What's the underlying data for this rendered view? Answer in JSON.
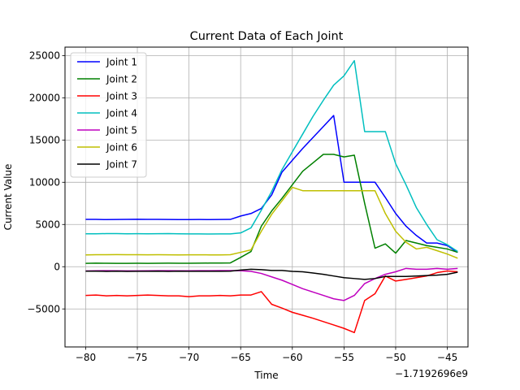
{
  "chart_data": {
    "type": "line",
    "title": "Current Data of Each Joint",
    "xlabel": "Time",
    "ylabel": "Current Value",
    "x_offset_label": "−1.7192696e9",
    "xlim": [
      -82,
      -43
    ],
    "ylim": [
      -9500,
      26000
    ],
    "xticks": [
      -80,
      -75,
      -70,
      -65,
      -60,
      -55,
      -50,
      -45
    ],
    "xtick_labels": [
      "−80",
      "−75",
      "−70",
      "−65",
      "−60",
      "−55",
      "−50",
      "−45"
    ],
    "yticks": [
      -5000,
      0,
      5000,
      10000,
      15000,
      20000,
      25000
    ],
    "ytick_labels": [
      "−5000",
      "0",
      "5000",
      "10000",
      "15000",
      "20000",
      "25000"
    ],
    "grid": true,
    "legend_position": "top-left",
    "x": [
      -80,
      -79,
      -78,
      -77,
      -76,
      -75,
      -74,
      -73,
      -72,
      -71,
      -70,
      -69,
      -68,
      -67,
      -66,
      -65,
      -64,
      -63,
      -62,
      -61,
      -60,
      -59,
      -58,
      -57,
      -56,
      -55,
      -54,
      -53,
      -52,
      -51,
      -50,
      -49,
      -48,
      -47,
      -46,
      -45,
      -44
    ],
    "series": [
      {
        "name": "Joint 1",
        "color": "#0000ff",
        "values": [
          5600,
          5600,
          5580,
          5590,
          5600,
          5620,
          5610,
          5600,
          5590,
          5580,
          5580,
          5590,
          5580,
          5590,
          5600,
          6000,
          6300,
          6900,
          8500,
          11200,
          12600,
          14000,
          15300,
          16600,
          17900,
          10000,
          10000,
          10000,
          10000,
          8200,
          6300,
          4800,
          3700,
          2800,
          2800,
          2500,
          1700
        ]
      },
      {
        "name": "Joint 2",
        "color": "#008000",
        "values": [
          400,
          420,
          410,
          400,
          400,
          410,
          400,
          410,
          420,
          410,
          410,
          420,
          430,
          430,
          450,
          1100,
          1800,
          4800,
          6600,
          8100,
          9700,
          11300,
          12300,
          13300,
          13300,
          13000,
          13200,
          7500,
          2200,
          2700,
          1600,
          3100,
          2800,
          2500,
          2300,
          2100,
          1700
        ]
      },
      {
        "name": "Joint 3",
        "color": "#ff0000",
        "values": [
          -3400,
          -3350,
          -3450,
          -3400,
          -3450,
          -3400,
          -3350,
          -3400,
          -3450,
          -3450,
          -3550,
          -3450,
          -3450,
          -3400,
          -3450,
          -3350,
          -3350,
          -2950,
          -4450,
          -4900,
          -5400,
          -5750,
          -6100,
          -6500,
          -6900,
          -7300,
          -7800,
          -4000,
          -3200,
          -1100,
          -1700,
          -1500,
          -1300,
          -1100,
          -700,
          -500,
          -600
        ]
      },
      {
        "name": "Joint 4",
        "color": "#00bfbf",
        "values": [
          3900,
          3900,
          3920,
          3920,
          3900,
          3910,
          3900,
          3910,
          3920,
          3900,
          3880,
          3890,
          3870,
          3880,
          3880,
          4000,
          4600,
          6700,
          8900,
          11500,
          13600,
          15700,
          17800,
          19700,
          21500,
          22600,
          24400,
          16000,
          16000,
          16000,
          12200,
          9700,
          7000,
          5000,
          3200,
          2600,
          1800
        ]
      },
      {
        "name": "Joint 5",
        "color": "#bf00bf",
        "values": [
          -500,
          -480,
          -470,
          -480,
          -490,
          -490,
          -480,
          -470,
          -470,
          -480,
          -480,
          -470,
          -470,
          -460,
          -460,
          -480,
          -550,
          -800,
          -1200,
          -1600,
          -2100,
          -2600,
          -3000,
          -3400,
          -3800,
          -4000,
          -3400,
          -2000,
          -1400,
          -900,
          -600,
          -200,
          -300,
          -300,
          -200,
          -300,
          -200
        ]
      },
      {
        "name": "Joint 6",
        "color": "#bfbf00",
        "values": [
          1400,
          1420,
          1420,
          1430,
          1420,
          1420,
          1410,
          1420,
          1410,
          1400,
          1410,
          1410,
          1400,
          1400,
          1420,
          1700,
          2000,
          4200,
          6200,
          7800,
          9400,
          9000,
          9000,
          9000,
          9000,
          9000,
          9000,
          9000,
          9000,
          6300,
          4200,
          2900,
          2100,
          2300,
          1900,
          1500,
          1000
        ]
      },
      {
        "name": "Joint 7",
        "color": "#000000",
        "values": [
          -530,
          -530,
          -550,
          -530,
          -550,
          -540,
          -540,
          -530,
          -550,
          -530,
          -540,
          -540,
          -540,
          -540,
          -530,
          -400,
          -300,
          -350,
          -450,
          -450,
          -550,
          -600,
          -750,
          -900,
          -1100,
          -1300,
          -1400,
          -1500,
          -1400,
          -1150,
          -1150,
          -1150,
          -1100,
          -1050,
          -1000,
          -900,
          -650
        ]
      }
    ]
  }
}
